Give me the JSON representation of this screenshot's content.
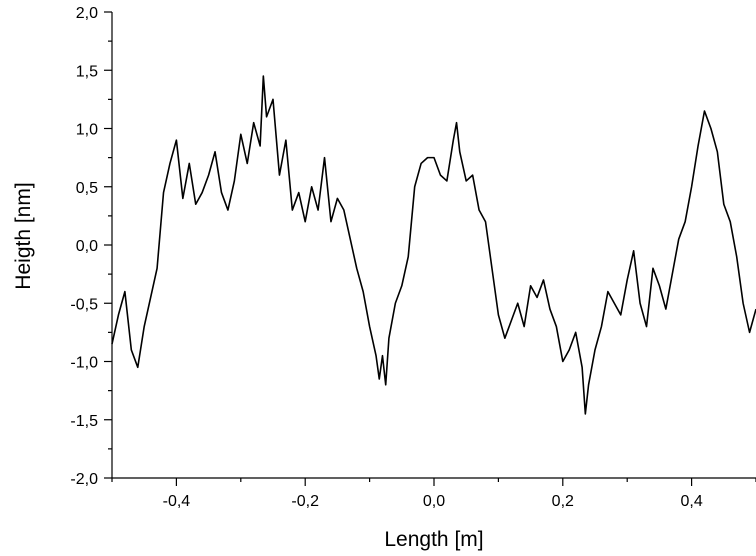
{
  "chart_data": {
    "type": "line",
    "title": "",
    "xlabel": "Length [m]",
    "ylabel": "Heigth [nm]",
    "xlim": [
      -0.5,
      0.5
    ],
    "ylim": [
      -2.0,
      2.0
    ],
    "x_ticks": [
      "-0,4",
      "-0,2",
      "0,0",
      "0,2",
      "0,4"
    ],
    "x_tick_values": [
      -0.4,
      -0.2,
      0.0,
      0.2,
      0.4
    ],
    "y_ticks": [
      "-2,0",
      "-1,5",
      "-1,0",
      "-0,5",
      "0,0",
      "0,5",
      "1,0",
      "1,5",
      "2,0"
    ],
    "y_tick_values": [
      -2.0,
      -1.5,
      -1.0,
      -0.5,
      0.0,
      0.5,
      1.0,
      1.5,
      2.0
    ],
    "grid": false,
    "legend": "none",
    "line_color": "#000000",
    "series": [
      {
        "x": [
          -0.5,
          -0.49,
          -0.48,
          -0.47,
          -0.46,
          -0.45,
          -0.44,
          -0.43,
          -0.42,
          -0.41,
          -0.4,
          -0.39,
          -0.38,
          -0.37,
          -0.36,
          -0.35,
          -0.34,
          -0.33,
          -0.32,
          -0.31,
          -0.3,
          -0.29,
          -0.28,
          -0.27,
          -0.265,
          -0.26,
          -0.25,
          -0.24,
          -0.23,
          -0.22,
          -0.21,
          -0.2,
          -0.19,
          -0.18,
          -0.17,
          -0.16,
          -0.15,
          -0.14,
          -0.13,
          -0.12,
          -0.11,
          -0.1,
          -0.09,
          -0.085,
          -0.08,
          -0.075,
          -0.07,
          -0.06,
          -0.05,
          -0.04,
          -0.03,
          -0.02,
          -0.01,
          0.0,
          0.01,
          0.02,
          0.03,
          0.035,
          0.04,
          0.05,
          0.06,
          0.07,
          0.08,
          0.09,
          0.1,
          0.11,
          0.12,
          0.13,
          0.14,
          0.15,
          0.16,
          0.17,
          0.18,
          0.19,
          0.2,
          0.21,
          0.22,
          0.23,
          0.235,
          0.24,
          0.25,
          0.26,
          0.27,
          0.28,
          0.29,
          0.3,
          0.31,
          0.32,
          0.33,
          0.34,
          0.35,
          0.36,
          0.37,
          0.38,
          0.39,
          0.4,
          0.41,
          0.42,
          0.43,
          0.44,
          0.45,
          0.46,
          0.47,
          0.48,
          0.49,
          0.5
        ],
        "y": [
          -0.85,
          -0.6,
          -0.4,
          -0.9,
          -1.05,
          -0.7,
          -0.45,
          -0.2,
          0.45,
          0.7,
          0.9,
          0.4,
          0.7,
          0.35,
          0.45,
          0.6,
          0.8,
          0.45,
          0.3,
          0.55,
          0.95,
          0.7,
          1.05,
          0.85,
          1.45,
          1.1,
          1.25,
          0.6,
          0.9,
          0.3,
          0.45,
          0.2,
          0.5,
          0.3,
          0.75,
          0.2,
          0.4,
          0.3,
          0.05,
          -0.2,
          -0.4,
          -0.7,
          -0.95,
          -1.15,
          -0.95,
          -1.2,
          -0.8,
          -0.5,
          -0.35,
          -0.1,
          0.5,
          0.7,
          0.75,
          0.75,
          0.6,
          0.55,
          0.9,
          1.05,
          0.8,
          0.55,
          0.6,
          0.3,
          0.2,
          -0.2,
          -0.6,
          -0.8,
          -0.65,
          -0.5,
          -0.7,
          -0.35,
          -0.45,
          -0.3,
          -0.55,
          -0.7,
          -1.0,
          -0.9,
          -0.75,
          -1.05,
          -1.45,
          -1.2,
          -0.9,
          -0.7,
          -0.4,
          -0.5,
          -0.6,
          -0.3,
          -0.05,
          -0.5,
          -0.7,
          -0.2,
          -0.35,
          -0.55,
          -0.25,
          0.05,
          0.2,
          0.5,
          0.85,
          1.15,
          1.0,
          0.8,
          0.35,
          0.2,
          -0.1,
          -0.5,
          -0.75,
          -0.55
        ]
      }
    ]
  }
}
